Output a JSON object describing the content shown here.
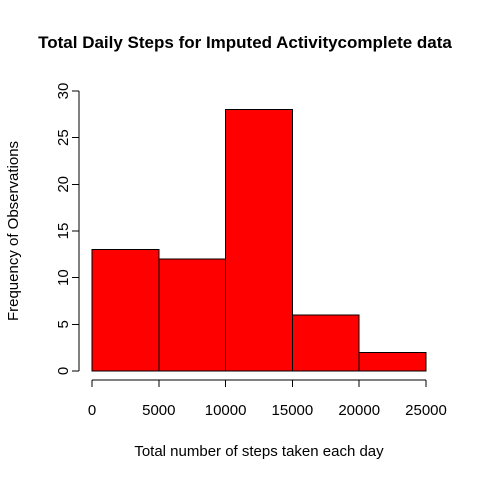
{
  "chart_data": {
    "type": "bar",
    "title": "Total Daily Steps for Imputed Activitycomplete data",
    "xlabel": "Total number of steps taken each day",
    "ylabel": "Frequency of Observations",
    "bins": [
      {
        "from": 0,
        "to": 5000,
        "count": 13
      },
      {
        "from": 5000,
        "to": 10000,
        "count": 12
      },
      {
        "from": 10000,
        "to": 15000,
        "count": 28
      },
      {
        "from": 15000,
        "to": 20000,
        "count": 6
      },
      {
        "from": 20000,
        "to": 25000,
        "count": 2
      }
    ],
    "xlim": [
      0,
      25000
    ],
    "ylim": [
      0,
      30
    ],
    "x_ticks": [
      0,
      5000,
      10000,
      15000,
      20000,
      25000
    ],
    "x_tick_labels": [
      "0",
      "5000",
      "10000",
      "15000",
      "20000",
      "25000"
    ],
    "y_ticks": [
      0,
      5,
      10,
      15,
      20,
      25,
      30
    ],
    "y_tick_labels": [
      "0",
      "5",
      "10",
      "15",
      "20",
      "25",
      "30"
    ],
    "bar_color": "#ff0000",
    "grid": false,
    "legend": "none"
  }
}
